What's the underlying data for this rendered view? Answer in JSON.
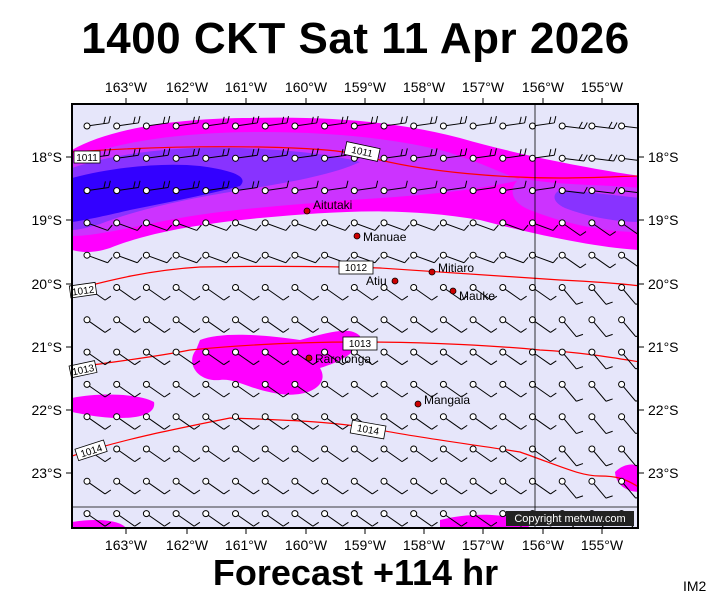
{
  "header": {
    "title": "1400 CKT Sat 11 Apr 2026"
  },
  "footer": {
    "forecast": "Forecast +114 hr",
    "code": "IM2",
    "copyright": "Copyright metvuw.com"
  },
  "map": {
    "lon_ticks": [
      "163°W",
      "162°W",
      "161°W",
      "160°W",
      "159°W",
      "158°W",
      "157°W",
      "156°W",
      "155°W"
    ],
    "lat_ticks": [
      "18°S",
      "19°S",
      "20°S",
      "21°S",
      "22°S",
      "23°S"
    ],
    "isobars": [
      "1011",
      "1012",
      "1013",
      "1014"
    ],
    "isobar_edge_labels": [
      "1011",
      "1012",
      "1013",
      "1014"
    ],
    "places": [
      "Aitutaki",
      "Manuae",
      "Mitiaro",
      "Atiu",
      "Mauke",
      "Rarotonga",
      "Mangaia"
    ],
    "colors": {
      "background": "#e6e6fa",
      "rain_light": "#ff00ff",
      "rain_mid": "#9900ff",
      "rain_heavy": "#0000ff",
      "isobar": "#ff0000",
      "island": "#cc0000"
    }
  }
}
